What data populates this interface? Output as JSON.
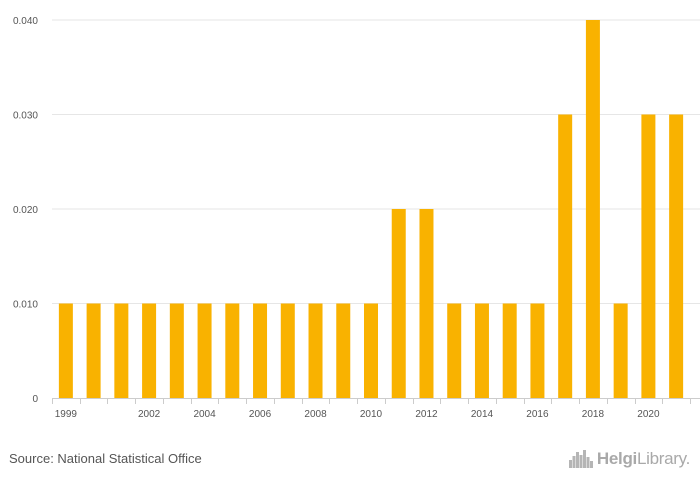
{
  "chart_data": {
    "type": "bar",
    "categories": [
      "1999",
      "2000",
      "2001",
      "2002",
      "2003",
      "2004",
      "2005",
      "2006",
      "2007",
      "2008",
      "2009",
      "2010",
      "2011",
      "2012",
      "2013",
      "2014",
      "2015",
      "2016",
      "2017",
      "2018",
      "2019",
      "2020",
      "2021"
    ],
    "values": [
      0.01,
      0.01,
      0.01,
      0.01,
      0.01,
      0.01,
      0.01,
      0.01,
      0.01,
      0.01,
      0.01,
      0.01,
      0.02,
      0.02,
      0.01,
      0.01,
      0.01,
      0.01,
      0.03,
      0.04,
      0.01,
      0.03,
      0.03
    ],
    "x_tick_labels": [
      "1999",
      "2002",
      "2004",
      "2006",
      "2008",
      "2010",
      "2012",
      "2014",
      "2016",
      "2018",
      "2020"
    ],
    "y_ticks": [
      0,
      0.01,
      0.02,
      0.03,
      0.04
    ],
    "y_tick_labels": [
      "0",
      "0.010",
      "0.020",
      "0.030",
      "0.040"
    ],
    "ylim": [
      0,
      0.04
    ],
    "title": "",
    "xlabel": "",
    "ylabel": "",
    "grid": true,
    "bar_color": "#f9b200"
  },
  "footer": {
    "source": "Source: National Statistical Office",
    "brand_part1": "Helgi",
    "brand_part2": "Library."
  },
  "colors": {
    "grid": "#e6e6e6",
    "axis": "#cccccc",
    "text": "#555555",
    "brand": "#a9a9a9"
  }
}
